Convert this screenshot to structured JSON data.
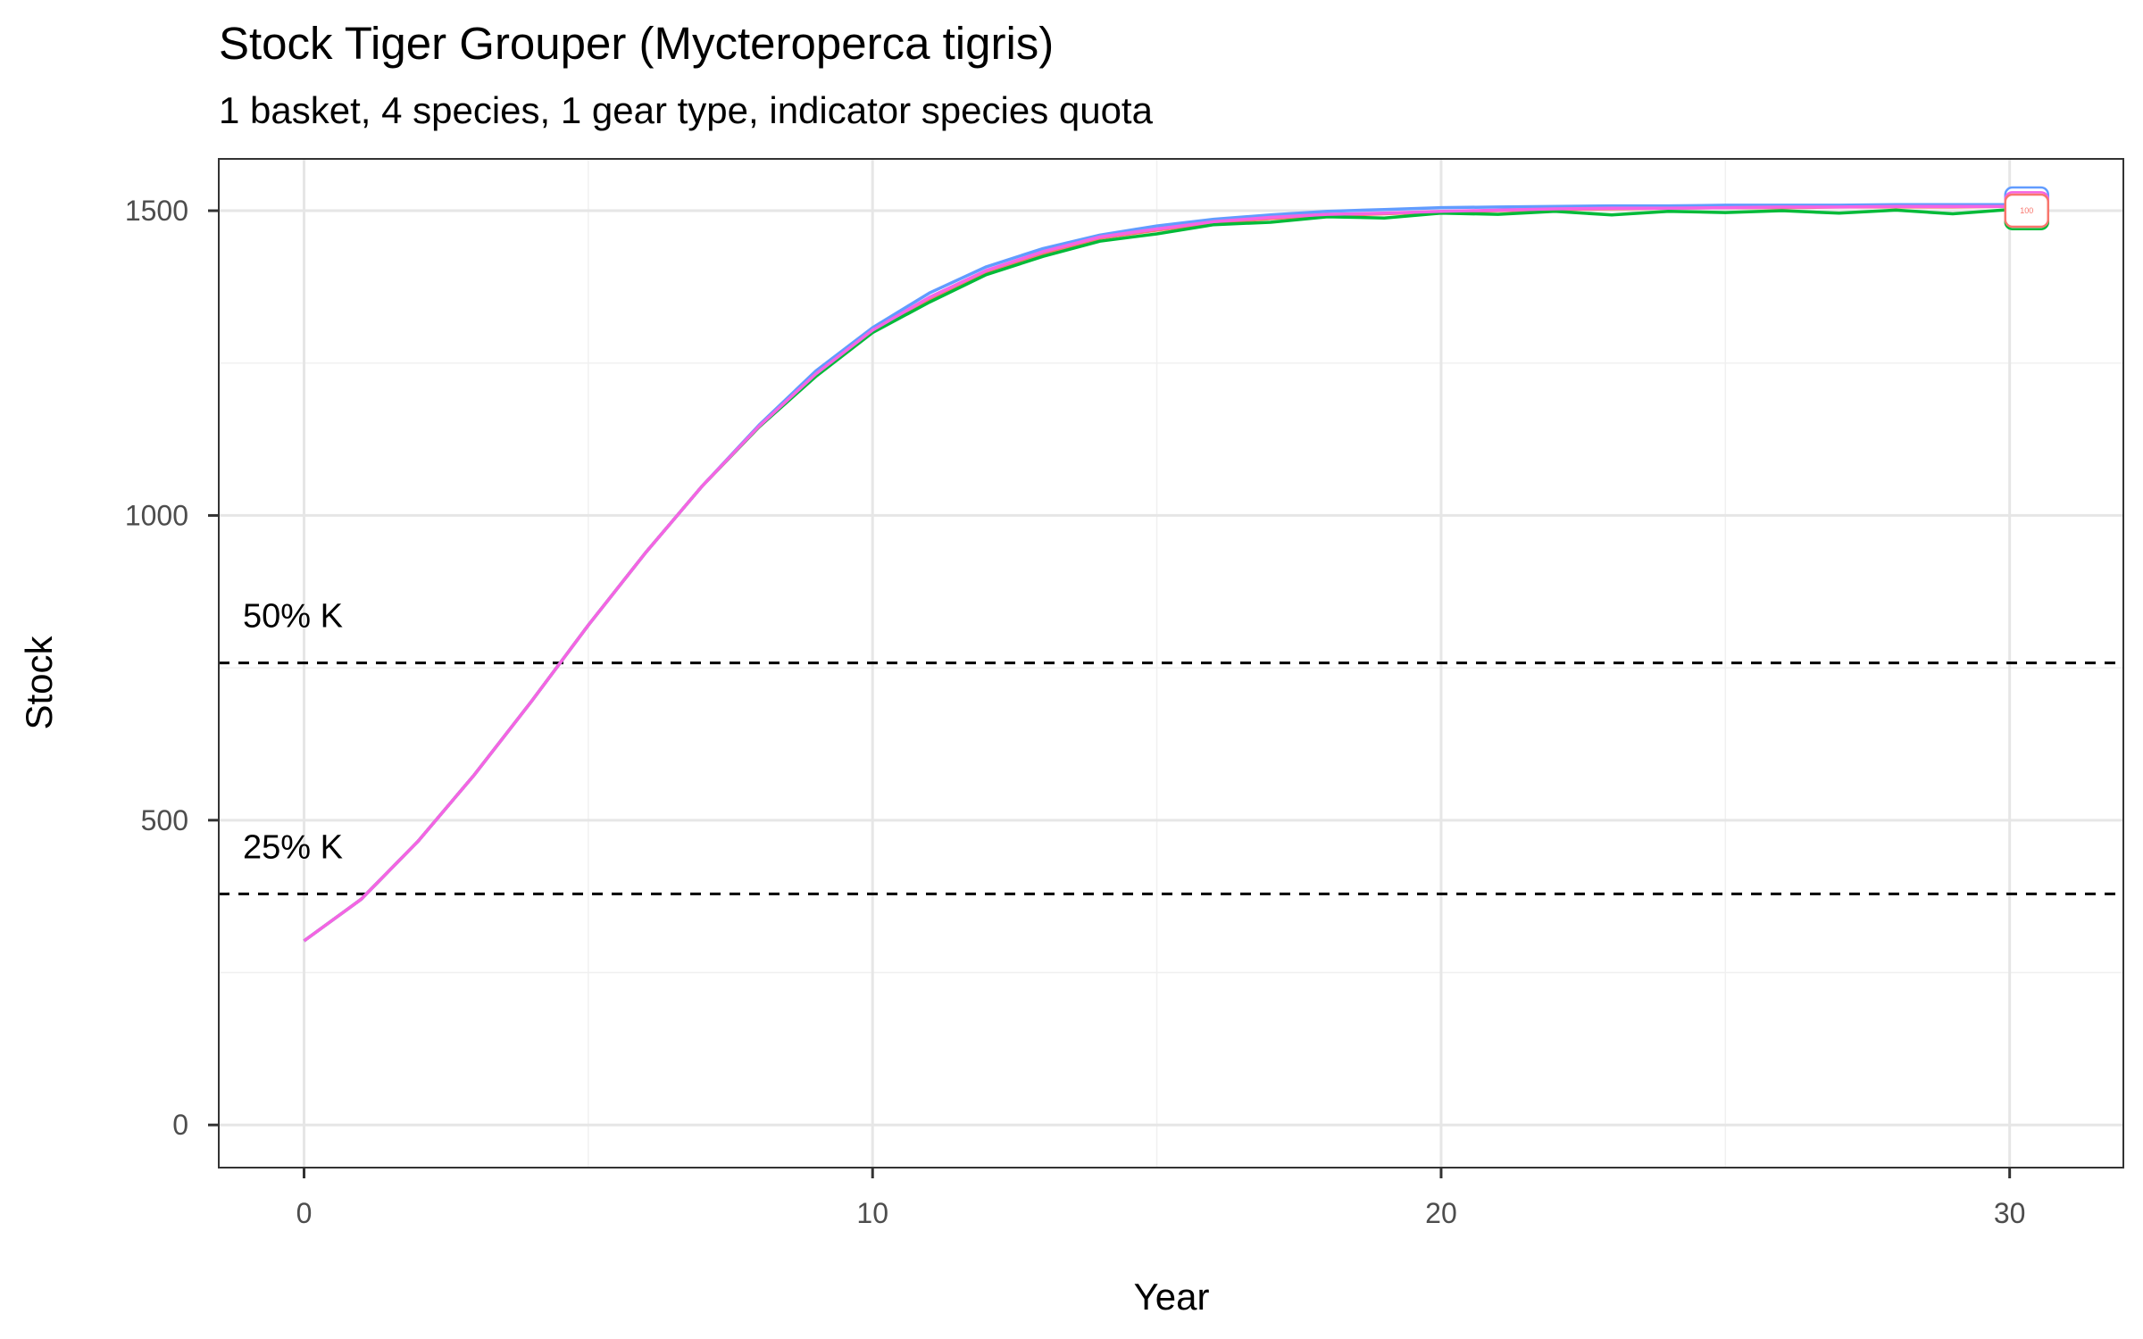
{
  "chart_data": {
    "type": "line",
    "title": "Stock Tiger Grouper (Mycteroperca tigris)",
    "subtitle": "1 basket, 4 species, 1 gear type, indicator species quota",
    "xlabel": "Year",
    "ylabel": "Stock",
    "xlim": [
      -1.5,
      32
    ],
    "ylim": [
      -70,
      1585
    ],
    "xticks": [
      0,
      10,
      20,
      30
    ],
    "yticks": [
      0,
      500,
      1000,
      1500
    ],
    "grid": true,
    "legend": "none",
    "x": [
      0,
      1,
      2,
      3,
      4,
      5,
      6,
      7,
      8,
      9,
      10,
      11,
      12,
      13,
      14,
      15,
      16,
      17,
      18,
      19,
      20,
      21,
      22,
      23,
      24,
      25,
      26,
      27,
      28,
      29,
      30
    ],
    "series": [
      {
        "color": "#F8766D",
        "values": [
          302,
          370,
          465,
          575,
          695,
          820,
          938,
          1048,
          1145,
          1230,
          1302,
          1355,
          1400,
          1430,
          1455,
          1468,
          1480,
          1487,
          1492,
          1495,
          1498,
          1500,
          1502,
          1503,
          1504,
          1505,
          1505,
          1506,
          1506,
          1506,
          1507
        ]
      },
      {
        "color": "#00BA38",
        "values": [
          302,
          370,
          465,
          575,
          695,
          820,
          938,
          1048,
          1145,
          1228,
          1300,
          1350,
          1395,
          1425,
          1450,
          1462,
          1477,
          1481,
          1490,
          1488,
          1496,
          1494,
          1499,
          1493,
          1499,
          1497,
          1500,
          1496,
          1501,
          1495,
          1502
        ]
      },
      {
        "color": "#619CFF",
        "values": [
          302,
          370,
          465,
          575,
          695,
          820,
          938,
          1048,
          1148,
          1237,
          1308,
          1365,
          1408,
          1438,
          1460,
          1475,
          1486,
          1493,
          1499,
          1502,
          1505,
          1506,
          1507,
          1508,
          1508,
          1509,
          1509,
          1509,
          1510,
          1510,
          1510
        ]
      },
      {
        "color": "#F564E3",
        "values": [
          302,
          370,
          465,
          575,
          695,
          820,
          938,
          1048,
          1146,
          1232,
          1304,
          1358,
          1402,
          1433,
          1457,
          1470,
          1482,
          1489,
          1494,
          1496,
          1499,
          1501,
          1503,
          1504,
          1504,
          1505,
          1506,
          1506,
          1507,
          1507,
          1507
        ]
      }
    ],
    "reference_lines": [
      {
        "label": "50% K",
        "y": 758
      },
      {
        "label": "25% K",
        "y": 379
      }
    ],
    "end_label": {
      "text": "100",
      "x": 30.3,
      "y": 1500
    }
  }
}
